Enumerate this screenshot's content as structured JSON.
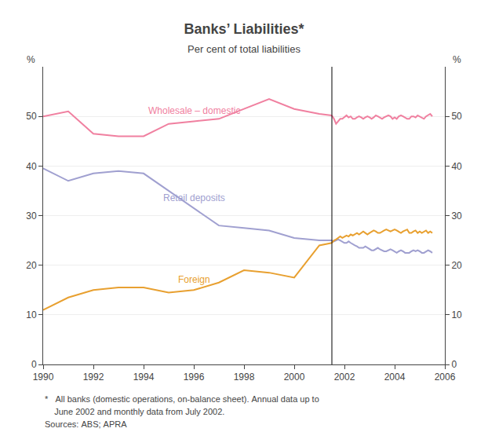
{
  "chart_data": {
    "type": "line",
    "title": "Banks’ Liabilities*",
    "subtitle": "Per cent of total liabilities",
    "ylabel": "%",
    "y2label": "%",
    "notes": [
      "*   All banks (domestic operations, on-balance sheet). Annual data up to",
      "    June 2002 and monthly data from July 2002.",
      "Sources: ABS; APRA"
    ],
    "xlim": [
      1990,
      2006
    ],
    "xticks": [
      1990,
      1992,
      1994,
      1996,
      1998,
      2000,
      2002,
      2004,
      2006
    ],
    "ylim": [
      0,
      60
    ],
    "yticks": [
      0,
      10,
      20,
      30,
      40,
      50
    ],
    "y2lim": [
      0,
      60
    ],
    "y2ticks": [
      0,
      10,
      20,
      30,
      40,
      50
    ],
    "grid": true,
    "vline": 2001.5,
    "series": [
      {
        "name": "Wholesale – domestic",
        "color": "#F080A0",
        "x": [
          1990,
          1991,
          1992,
          1993,
          1994,
          1995,
          1996,
          1997,
          1998,
          1999,
          2000,
          2001,
          2001.5
        ],
        "values": [
          50.0,
          51.0,
          46.5,
          46.0,
          46.0,
          48.5,
          49.0,
          49.5,
          51.5,
          53.5,
          51.5,
          50.5,
          50.2
        ]
      },
      {
        "name": "Retail deposits",
        "color": "#A0A0D0",
        "x": [
          1990,
          1991,
          1992,
          1993,
          1994,
          1995,
          1996,
          1997,
          1998,
          1999,
          2000,
          2001,
          2001.5
        ],
        "values": [
          39.5,
          37.0,
          38.5,
          39.0,
          38.5,
          35.0,
          31.5,
          28.0,
          27.5,
          27.0,
          25.5,
          25.0,
          25.0
        ]
      },
      {
        "name": "Foreign",
        "color": "#E8A030",
        "x": [
          1990,
          1991,
          1992,
          1993,
          1994,
          1995,
          1996,
          1997,
          1998,
          1999,
          2000,
          2001,
          2001.5
        ],
        "values": [
          11.0,
          13.5,
          15.0,
          15.5,
          15.5,
          14.5,
          15.0,
          16.5,
          19.0,
          18.5,
          17.5,
          24.0,
          24.5
        ]
      },
      {
        "name": "Wholesale – domestic",
        "color": "#F080A0",
        "x": [
          2001.5,
          2001.583,
          2001.667,
          2001.75,
          2001.833,
          2001.917,
          2002.0,
          2002.083,
          2002.167,
          2002.25,
          2002.333,
          2002.417,
          2002.5,
          2002.583,
          2002.667,
          2002.75,
          2002.833,
          2002.917,
          2003.0,
          2003.083,
          2003.167,
          2003.25,
          2003.333,
          2003.417,
          2003.5,
          2003.583,
          2003.667,
          2003.75,
          2003.833,
          2003.917,
          2004.0,
          2004.083,
          2004.167,
          2004.25,
          2004.333,
          2004.417,
          2004.5,
          2004.583,
          2004.667,
          2004.75,
          2004.833,
          2004.917,
          2005.0,
          2005.083,
          2005.167,
          2005.25,
          2005.333,
          2005.417,
          2005.5
        ],
        "values": [
          50.2,
          49.5,
          48.5,
          49.0,
          49.5,
          49.5,
          49.8,
          50.2,
          49.8,
          50.0,
          49.5,
          49.5,
          49.8,
          50.0,
          49.8,
          49.5,
          49.8,
          50.0,
          49.8,
          49.5,
          49.8,
          50.2,
          50.0,
          49.8,
          49.5,
          49.8,
          50.0,
          50.2,
          50.0,
          49.5,
          49.8,
          49.5,
          50.0,
          50.2,
          50.0,
          49.8,
          49.5,
          49.5,
          50.0,
          50.0,
          49.8,
          50.2,
          50.0,
          49.8,
          49.5,
          50.0,
          50.2,
          50.5,
          50.0
        ]
      },
      {
        "name": "Retail deposits",
        "color": "#A0A0D0",
        "x": [
          2001.5,
          2001.583,
          2001.667,
          2001.75,
          2001.833,
          2001.917,
          2002.0,
          2002.083,
          2002.167,
          2002.25,
          2002.333,
          2002.417,
          2002.5,
          2002.583,
          2002.667,
          2002.75,
          2002.833,
          2002.917,
          2003.0,
          2003.083,
          2003.167,
          2003.25,
          2003.333,
          2003.417,
          2003.5,
          2003.583,
          2003.667,
          2003.75,
          2003.833,
          2003.917,
          2004.0,
          2004.083,
          2004.167,
          2004.25,
          2004.333,
          2004.417,
          2004.5,
          2004.583,
          2004.667,
          2004.75,
          2004.833,
          2004.917,
          2005.0,
          2005.083,
          2005.167,
          2005.25,
          2005.333,
          2005.417,
          2005.5
        ],
        "values": [
          25.0,
          24.8,
          25.0,
          25.2,
          25.0,
          24.8,
          24.5,
          24.5,
          24.8,
          24.5,
          24.2,
          24.0,
          23.8,
          23.5,
          23.5,
          23.5,
          23.8,
          23.5,
          23.2,
          23.0,
          23.0,
          23.2,
          23.5,
          23.2,
          23.0,
          22.8,
          22.8,
          23.0,
          23.2,
          23.0,
          22.8,
          22.5,
          22.8,
          23.0,
          22.8,
          22.5,
          22.5,
          22.5,
          22.8,
          23.0,
          22.8,
          23.0,
          22.8,
          22.5,
          22.5,
          22.8,
          23.0,
          22.8,
          22.5
        ]
      },
      {
        "name": "Foreign",
        "color": "#E8A030",
        "x": [
          2001.5,
          2001.583,
          2001.667,
          2001.75,
          2001.833,
          2001.917,
          2002.0,
          2002.083,
          2002.167,
          2002.25,
          2002.333,
          2002.417,
          2002.5,
          2002.583,
          2002.667,
          2002.75,
          2002.833,
          2002.917,
          2003.0,
          2003.083,
          2003.167,
          2003.25,
          2003.333,
          2003.417,
          2003.5,
          2003.583,
          2003.667,
          2003.75,
          2003.833,
          2003.917,
          2004.0,
          2004.083,
          2004.167,
          2004.25,
          2004.333,
          2004.417,
          2004.5,
          2004.583,
          2004.667,
          2004.75,
          2004.833,
          2004.917,
          2005.0,
          2005.083,
          2005.167,
          2005.25,
          2005.333,
          2005.417,
          2005.5
        ],
        "values": [
          24.5,
          25.0,
          25.2,
          25.5,
          25.8,
          25.5,
          25.8,
          26.0,
          25.8,
          26.2,
          26.0,
          26.2,
          26.5,
          26.2,
          26.5,
          26.8,
          26.5,
          26.2,
          26.5,
          26.8,
          27.0,
          26.8,
          26.5,
          26.5,
          26.8,
          27.0,
          27.2,
          27.0,
          26.8,
          27.0,
          27.2,
          27.0,
          26.8,
          26.5,
          26.8,
          27.0,
          27.2,
          26.5,
          26.5,
          26.8,
          27.0,
          26.5,
          26.8,
          26.5,
          26.8,
          27.0,
          26.5,
          26.8,
          26.5
        ]
      }
    ]
  }
}
